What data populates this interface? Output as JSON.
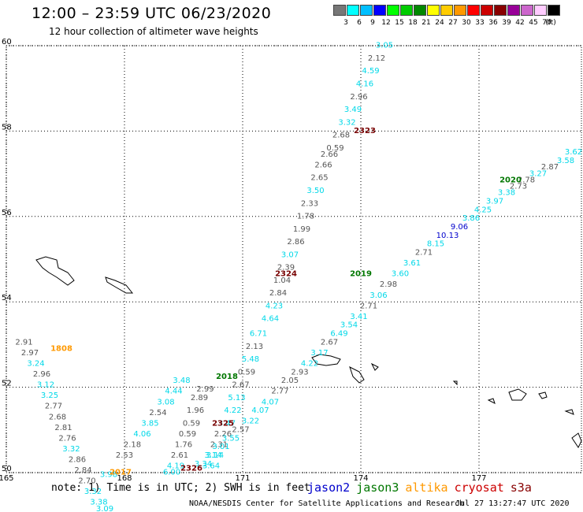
{
  "title": "12:00 – 23:59 UTC 06/23/2020",
  "subtitle": "12 hour collection of altimeter wave heights",
  "scale": {
    "unit": "(ft)",
    "swatches": [
      {
        "label": "3",
        "color": "#777777"
      },
      {
        "label": "6",
        "color": "#00ffff"
      },
      {
        "label": "9",
        "color": "#00bfff"
      },
      {
        "label": "12",
        "color": "#0000ff"
      },
      {
        "label": "15",
        "color": "#00ff00"
      },
      {
        "label": "18",
        "color": "#00cc00"
      },
      {
        "label": "21",
        "color": "#008800"
      },
      {
        "label": "24",
        "color": "#ffff00"
      },
      {
        "label": "27",
        "color": "#ffcc00"
      },
      {
        "label": "30",
        "color": "#ff9900"
      },
      {
        "label": "33",
        "color": "#ff0000"
      },
      {
        "label": "36",
        "color": "#cc0000"
      },
      {
        "label": "39",
        "color": "#880000"
      },
      {
        "label": "42",
        "color": "#990099"
      },
      {
        "label": "45",
        "color": "#cc66cc"
      },
      {
        "label": "70",
        "color": "#ffccff"
      },
      {
        "label": "",
        "color": "#000000"
      }
    ]
  },
  "map": {
    "lon_ticks": [
      "165",
      "168",
      "171",
      "174",
      "177"
    ],
    "lat_ticks": [
      "60",
      "58",
      "56",
      "54",
      "52",
      "50"
    ],
    "lon_range": [
      165,
      179.6
    ],
    "lat_range": [
      50,
      60
    ]
  },
  "colors": {
    "gray": "#555555",
    "cyan": "#00d8e8",
    "blue": "#0000cc",
    "green": "#007700",
    "orange": "#ff9900",
    "darkred": "#770000"
  },
  "passes": [
    {
      "label": "2323",
      "color": "darkred",
      "lon": 174.1,
      "lat": 57.95
    },
    {
      "label": "2324",
      "color": "darkred",
      "lon": 172.1,
      "lat": 54.6
    },
    {
      "label": "2325",
      "color": "darkred",
      "lon": 170.5,
      "lat": 51.1
    },
    {
      "label": "2326",
      "color": "darkred",
      "lon": 169.7,
      "lat": 50.05
    },
    {
      "label": "2020",
      "color": "green",
      "lon": 177.8,
      "lat": 56.8
    },
    {
      "label": "2019",
      "color": "green",
      "lon": 174.0,
      "lat": 54.6
    },
    {
      "label": "2018",
      "color": "green",
      "lon": 170.6,
      "lat": 52.2
    },
    {
      "label": "2017",
      "color": "orange",
      "lon": 167.9,
      "lat": 49.95
    },
    {
      "label": "1808",
      "color": "orange",
      "lon": 166.4,
      "lat": 52.85
    }
  ],
  "tracks": [
    {
      "name": "pass-2323-2324",
      "points": [
        [
          "3.05",
          "cyan",
          174.6,
          59.95
        ],
        [
          "2.12",
          "gray",
          174.4,
          59.65
        ],
        [
          "4.59",
          "cyan",
          174.25,
          59.35
        ],
        [
          "4.16",
          "cyan",
          174.1,
          59.05
        ],
        [
          "2.96",
          "gray",
          173.95,
          58.75
        ],
        [
          "3.49",
          "cyan",
          173.8,
          58.45
        ],
        [
          "3.32",
          "cyan",
          173.65,
          58.15
        ],
        [
          "2.68",
          "gray",
          173.5,
          57.85
        ],
        [
          "0.59",
          "gray",
          173.35,
          57.55
        ],
        [
          "2.66",
          "gray",
          173.2,
          57.4
        ],
        [
          "2.66",
          "gray",
          173.05,
          57.15
        ],
        [
          "2.65",
          "gray",
          172.95,
          56.85
        ],
        [
          "3.50",
          "cyan",
          172.85,
          56.55
        ],
        [
          "2.33",
          "gray",
          172.7,
          56.25
        ],
        [
          "1.78",
          "gray",
          172.6,
          55.95
        ],
        [
          "1.99",
          "gray",
          172.5,
          55.65
        ],
        [
          "2.86",
          "gray",
          172.35,
          55.35
        ],
        [
          "3.07",
          "cyan",
          172.2,
          55.05
        ],
        [
          "2.39",
          "gray",
          172.1,
          54.75
        ],
        [
          "1.04",
          "gray",
          172.0,
          54.45
        ],
        [
          "2.84",
          "gray",
          171.9,
          54.15
        ],
        [
          "4.23",
          "cyan",
          171.8,
          53.85
        ],
        [
          "4.64",
          "cyan",
          171.7,
          53.55
        ],
        [
          "6.71",
          "cyan",
          171.4,
          53.2
        ],
        [
          "2.13",
          "gray",
          171.3,
          52.9
        ],
        [
          "5.48",
          "cyan",
          171.2,
          52.6
        ],
        [
          "0.59",
          "gray",
          171.1,
          52.3
        ],
        [
          "2.67",
          "gray",
          170.95,
          52.0
        ],
        [
          "5.13",
          "cyan",
          170.85,
          51.7
        ],
        [
          "4.22",
          "cyan",
          170.75,
          51.4
        ],
        [
          "3.47",
          "cyan",
          170.6,
          51.1
        ],
        [
          "2.26",
          "gray",
          170.5,
          50.85
        ],
        [
          "2.31",
          "gray",
          170.4,
          50.6
        ],
        [
          "3.14",
          "cyan",
          170.3,
          50.35
        ],
        [
          "3.64",
          "cyan",
          170.2,
          50.1
        ],
        [
          "2.99",
          "gray",
          170.05,
          51.9
        ],
        [
          "2.89",
          "gray",
          169.9,
          51.7
        ],
        [
          "1.96",
          "gray",
          169.8,
          51.4
        ],
        [
          "0.59",
          "gray",
          169.7,
          51.1
        ],
        [
          "0.59",
          "gray",
          169.6,
          50.85
        ],
        [
          "1.76",
          "gray",
          169.5,
          50.6
        ],
        [
          "2.61",
          "gray",
          169.4,
          50.35
        ],
        [
          "4.19",
          "cyan",
          169.3,
          50.1
        ],
        [
          "6.00",
          "cyan",
          169.2,
          49.95
        ]
      ]
    },
    {
      "name": "pass-2020-2019-2018",
      "points": [
        [
          "3.62",
          "cyan",
          179.4,
          57.45
        ],
        [
          "3.58",
          "cyan",
          179.2,
          57.25
        ],
        [
          "2.87",
          "gray",
          178.8,
          57.1
        ],
        [
          "3.27",
          "cyan",
          178.5,
          56.95
        ],
        [
          "2.78",
          "gray",
          178.2,
          56.8
        ],
        [
          "2.73",
          "gray",
          178.0,
          56.65
        ],
        [
          "3.38",
          "cyan",
          177.7,
          56.5
        ],
        [
          "3.97",
          "cyan",
          177.4,
          56.3
        ],
        [
          "4.25",
          "cyan",
          177.1,
          56.1
        ],
        [
          "3.86",
          "cyan",
          176.8,
          55.9
        ],
        [
          "9.06",
          "blue",
          176.5,
          55.7
        ],
        [
          "10.13",
          "blue",
          176.2,
          55.5
        ],
        [
          "8.15",
          "cyan",
          175.9,
          55.3
        ],
        [
          "2.71",
          "gray",
          175.6,
          55.1
        ],
        [
          "3.61",
          "cyan",
          175.3,
          54.85
        ],
        [
          "3.60",
          "cyan",
          175.0,
          54.6
        ],
        [
          "2.98",
          "gray",
          174.7,
          54.35
        ],
        [
          "3.06",
          "cyan",
          174.45,
          54.1
        ],
        [
          "2.71",
          "gray",
          174.2,
          53.85
        ],
        [
          "3.41",
          "cyan",
          173.95,
          53.6
        ],
        [
          "3.54",
          "cyan",
          173.7,
          53.4
        ],
        [
          "6.49",
          "cyan",
          173.45,
          53.2
        ],
        [
          "2.67",
          "gray",
          173.2,
          53.0
        ],
        [
          "3.17",
          "cyan",
          172.95,
          52.75
        ],
        [
          "4.22",
          "cyan",
          172.7,
          52.5
        ],
        [
          "2.93",
          "gray",
          172.45,
          52.3
        ],
        [
          "2.05",
          "gray",
          172.2,
          52.1
        ],
        [
          "2.77",
          "gray",
          171.95,
          51.85
        ],
        [
          "4.07",
          "cyan",
          171.7,
          51.6
        ],
        [
          "4.07",
          "cyan",
          171.45,
          51.4
        ],
        [
          "3.22",
          "cyan",
          171.2,
          51.15
        ],
        [
          "2.57",
          "gray",
          170.95,
          50.95
        ],
        [
          "3.55",
          "cyan",
          170.7,
          50.75
        ],
        [
          "3.01",
          "cyan",
          170.45,
          50.55
        ],
        [
          "3.14",
          "cyan",
          170.25,
          50.35
        ],
        [
          "3.34",
          "cyan",
          170.0,
          50.15
        ]
      ]
    },
    {
      "name": "pass-2017-1808",
      "points": [
        [
          "2.91",
          "gray",
          165.45,
          53.0
        ],
        [
          "2.97",
          "gray",
          165.6,
          52.75
        ],
        [
          "3.24",
          "cyan",
          165.75,
          52.5
        ],
        [
          "2.96",
          "gray",
          165.9,
          52.25
        ],
        [
          "3.12",
          "cyan",
          166.0,
          52.0
        ],
        [
          "3.25",
          "cyan",
          166.1,
          51.75
        ],
        [
          "2.77",
          "gray",
          166.2,
          51.5
        ],
        [
          "2.68",
          "gray",
          166.3,
          51.25
        ],
        [
          "2.81",
          "gray",
          166.45,
          51.0
        ],
        [
          "2.76",
          "gray",
          166.55,
          50.75
        ],
        [
          "3.32",
          "cyan",
          166.65,
          50.5
        ],
        [
          "2.86",
          "gray",
          166.8,
          50.25
        ],
        [
          "2.84",
          "gray",
          166.95,
          50.0
        ],
        [
          "2.70",
          "gray",
          167.05,
          49.75
        ],
        [
          "3.32",
          "cyan",
          167.2,
          49.5
        ],
        [
          "3.38",
          "cyan",
          167.35,
          49.25
        ],
        [
          "3.09",
          "cyan",
          167.5,
          49.1
        ],
        [
          "2.53",
          "gray",
          168.0,
          50.35
        ],
        [
          "2.18",
          "gray",
          168.2,
          50.6
        ],
        [
          "4.06",
          "cyan",
          168.45,
          50.85
        ],
        [
          "3.85",
          "cyan",
          168.65,
          51.1
        ],
        [
          "2.54",
          "gray",
          168.85,
          51.35
        ],
        [
          "3.08",
          "cyan",
          169.05,
          51.6
        ],
        [
          "4.44",
          "cyan",
          169.25,
          51.85
        ],
        [
          "3.48",
          "cyan",
          169.45,
          52.1
        ],
        [
          "3.98",
          "cyan",
          167.6,
          49.9
        ]
      ]
    }
  ],
  "note": "note: 1) Time is in UTC; 2) SWH is in feet",
  "legend": [
    {
      "label": "jason2",
      "color": "#0000cc"
    },
    {
      "label": "jason3",
      "color": "#007700"
    },
    {
      "label": "altika",
      "color": "#ff9900"
    },
    {
      "label": "cryosat",
      "color": "#cc0000"
    },
    {
      "label": "s3a",
      "color": "#880000"
    }
  ],
  "credit": "NOAA/NESDIS Center for Satellite Applications and Research",
  "timestamp": "Jul 27 13:27:47 UTC 2020"
}
